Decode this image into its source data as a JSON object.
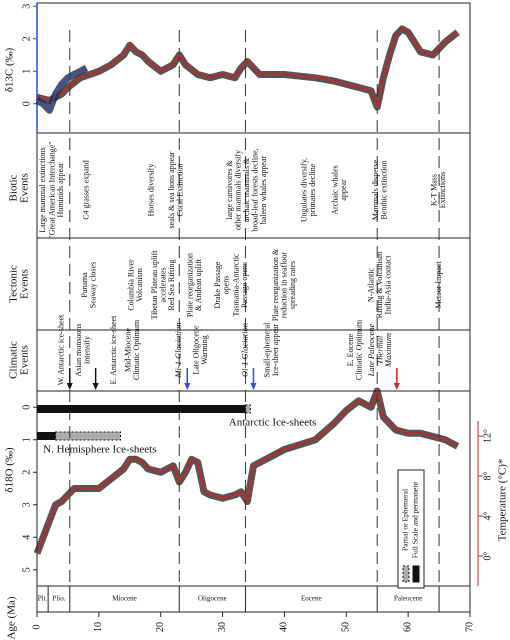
{
  "chart_data": {
    "type": "line",
    "x_label": "Age (Ma)",
    "xlim": [
      0,
      70
    ],
    "xticks": [
      0,
      10,
      20,
      30,
      40,
      50,
      60,
      70
    ],
    "d13c_label": "δ13C (‰)",
    "d13c_color": "#2a4fd6",
    "d13c_ylim": [
      -0.9,
      3.1
    ],
    "d13c_yticks": [
      0,
      1,
      2,
      3
    ],
    "d18o_label": "δ18O (‰)",
    "ylim": [
      -0.5,
      5.5
    ],
    "yticks": [
      0,
      1,
      2,
      3,
      4,
      5
    ],
    "y2_label": "Temperature (°C)*",
    "y2_color": "#d62020",
    "y2lim": [
      -3,
      16.5
    ],
    "y2ticks": [
      {
        "value": 0,
        "label": "0°"
      },
      {
        "value": 4,
        "label": "4°"
      },
      {
        "value": 8,
        "label": "8°"
      },
      {
        "value": 12,
        "label": "12°"
      }
    ],
    "d13c_series": [
      {
        "color": "#d62020",
        "x": [
          0,
          2,
          4,
          5,
          7,
          10,
          12,
          14,
          15,
          16,
          17,
          18,
          20,
          22,
          23,
          24,
          26,
          28,
          30,
          32,
          33,
          34,
          36,
          40,
          45,
          48,
          50,
          52,
          54,
          55,
          56,
          57,
          58,
          59,
          60,
          61,
          62,
          64,
          66,
          68
        ],
        "values": [
          0.2,
          0.1,
          0.3,
          0.5,
          0.8,
          1.0,
          1.2,
          1.5,
          1.8,
          1.6,
          1.5,
          1.3,
          1.0,
          1.2,
          1.5,
          1.2,
          0.9,
          0.8,
          0.9,
          0.8,
          1.1,
          1.3,
          0.9,
          0.9,
          0.8,
          0.7,
          0.6,
          0.5,
          0.4,
          -0.1,
          0.8,
          1.5,
          2.1,
          2.3,
          2.2,
          1.9,
          1.6,
          1.5,
          1.9,
          2.2
        ]
      },
      {
        "color": "#2a4fd6",
        "x": [
          0,
          1,
          2,
          3,
          4,
          5,
          6,
          7,
          8
        ],
        "values": [
          0.1,
          0.0,
          -0.2,
          0.3,
          0.6,
          0.8,
          0.9,
          1.0,
          1.1
        ]
      }
    ],
    "series": [
      {
        "color": "#d62020",
        "x": [
          0,
          1,
          2,
          3,
          4,
          5,
          6,
          8,
          10,
          12,
          14,
          15,
          16,
          17,
          18,
          20,
          22,
          23,
          24,
          25,
          26,
          27,
          28,
          30,
          32,
          33,
          34,
          35,
          38,
          40,
          45,
          48,
          50,
          52,
          54,
          55,
          56,
          58,
          60,
          62,
          64,
          66,
          68
        ],
        "values": [
          4.5,
          4.0,
          3.5,
          3.0,
          2.9,
          2.7,
          2.5,
          2.5,
          2.5,
          2.2,
          1.9,
          1.6,
          1.6,
          1.7,
          1.9,
          2.0,
          1.8,
          2.3,
          2.0,
          1.6,
          1.7,
          2.6,
          2.7,
          2.8,
          2.7,
          2.6,
          2.9,
          1.8,
          1.5,
          1.3,
          1.0,
          0.5,
          0.1,
          -0.2,
          0.0,
          -0.5,
          0.3,
          0.7,
          0.8,
          0.8,
          0.9,
          1.0,
          1.2
        ]
      }
    ],
    "grid": false,
    "epochs": [
      {
        "name": "Plt.",
        "start": 0,
        "end": 1.8
      },
      {
        "name": "Plio.",
        "start": 1.8,
        "end": 5.3
      },
      {
        "name": "Miocene",
        "start": 5.3,
        "end": 23
      },
      {
        "name": "Oligocene",
        "start": 23,
        "end": 33.7
      },
      {
        "name": "Eocene",
        "start": 33.7,
        "end": 55
      },
      {
        "name": "Paleocene",
        "start": 55,
        "end": 65
      }
    ],
    "rows": [
      {
        "lines": [
          "Biotic",
          "Events"
        ]
      },
      {
        "lines": [
          "Tectonic",
          "Events"
        ]
      },
      {
        "lines": [
          "Climatic",
          "Events"
        ]
      }
    ],
    "biotic": [
      {
        "age": 1,
        "lines": [
          "Large mammal extinctions"
        ]
      },
      {
        "age": 3.2,
        "lines": [
          "\"Great American Interchange\"",
          "Hominids appear"
        ]
      },
      {
        "age": 8,
        "lines": [
          "C4 grasses expand"
        ]
      },
      {
        "age": 18.5,
        "lines": [
          "Horses diversify"
        ]
      },
      {
        "age": 22.5,
        "lines": [
          "seals & sea lions appear",
          "Coral Extinction"
        ]
      },
      {
        "age": 34,
        "lines": [
          "large carnivores &",
          "other mammals diversify",
          "archaic mammals &",
          "broad-leaf forests decline,",
          "baleen whales appear"
        ]
      },
      {
        "age": 44,
        "lines": [
          "Ungulates diversify,",
          "primates decline"
        ]
      },
      {
        "age": 49,
        "lines": [
          "Archaic whales",
          "appear"
        ]
      },
      {
        "age": 55.5,
        "lines": [
          "Mammals disperse",
          "Benthic extinction"
        ]
      },
      {
        "age": 65,
        "lines": [
          "K-T Mass",
          "Extinctions"
        ]
      }
    ],
    "tectonic": [
      {
        "age": 8.5,
        "lines": [
          "Panama",
          "Seaway closes"
        ]
      },
      {
        "age": 16,
        "lines": [
          "Columbia River",
          "Volcanism"
        ]
      },
      {
        "age": 20.5,
        "lines": [
          "Tibetan Plateau uplift",
          "accelerates",
          "Red Sea Rifting"
        ]
      },
      {
        "age": 25.5,
        "lines": [
          "Plate reorganization",
          "& Andean uplift"
        ]
      },
      {
        "age": 30,
        "lines": [
          "Drake Passage",
          "opens"
        ]
      },
      {
        "age": 33,
        "lines": [
          "Tasmania-Antarctic",
          "Passage opens"
        ]
      },
      {
        "age": 40,
        "lines": [
          "Plate reorganization &",
          "reduction in seafloor",
          "spreading rates"
        ]
      },
      {
        "age": 55.5,
        "lines": [
          "N-Atlantic",
          "Rifting & Volcanism",
          "India-Asia contact"
        ]
      },
      {
        "age": 65,
        "lines": [
          "Meteor Impact"
        ]
      }
    ],
    "climatic": [
      {
        "age": 4,
        "lines": [
          "W. Antarctic ice-sheet"
        ],
        "arrow": "#111"
      },
      {
        "age": 7.5,
        "lines": [
          "Asian monsoons",
          "intensify"
        ],
        "arrow": "#111"
      },
      {
        "age": 12.5,
        "lines": [
          "E. Antarctic ice-sheet"
        ]
      },
      {
        "age": 15.5,
        "lines": [
          "Mid-Miocene",
          "Climatic Optimum"
        ]
      },
      {
        "age": 23,
        "lines": [
          "Mi-1 Glaciation"
        ],
        "color": "#2a4fd6",
        "arrow": "#2a4fd6"
      },
      {
        "age": 26.5,
        "lines": [
          "Late Oligocene",
          "Warming"
        ]
      },
      {
        "age": 33.7,
        "lines": [
          "Oi-1 Glaciation"
        ],
        "color": "#2a4fd6",
        "arrow": "#2a4fd6"
      },
      {
        "age": 38,
        "lines": [
          "Small-ephemeral",
          "Ice-sheet appear"
        ]
      },
      {
        "age": 51.5,
        "lines": [
          "E. Eocene",
          "Climatic Optimum"
        ]
      },
      {
        "age": 55.5,
        "lines": [
          "Late Paleocene",
          "Thermal",
          "Maximum"
        ],
        "color": "#d62020",
        "arrow": "#d62020"
      }
    ],
    "ice_sheets": [
      {
        "name": "Antarctic Ice-sheets",
        "full": [
          0,
          33.7
        ],
        "partial": [
          33.7,
          34.5
        ]
      },
      {
        "name": "N. Hemisphere Ice-sheets",
        "full": [
          0,
          3
        ],
        "partial": [
          3,
          13.5
        ]
      }
    ],
    "ice_legend": [
      "Partial or Ephemeral",
      "Full Scale and permanent"
    ]
  }
}
